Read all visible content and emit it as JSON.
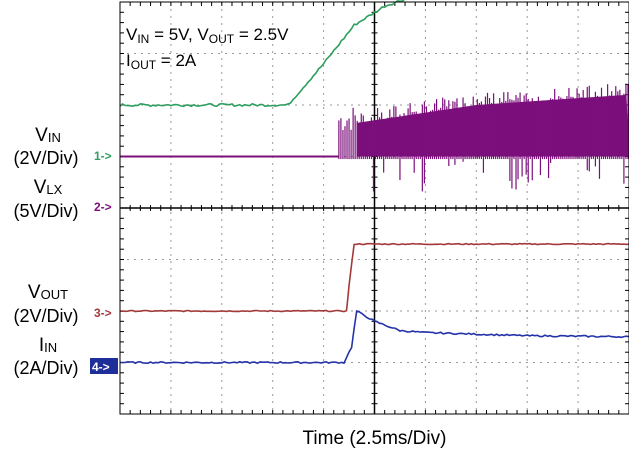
{
  "chart_data": {
    "type": "line",
    "title": "",
    "xlabel": "Time (2.5ms/Div)",
    "annotation": {
      "line1": {
        "v_in_symbol": "V",
        "v_in_sub": "IN",
        "v_in_value": " = 5V, ",
        "v_out_symbol": "V",
        "v_out_sub": "OUT",
        "v_out_value": " = 2.5V"
      },
      "line2": {
        "symbol": "I",
        "sub": "OUT",
        "value": " = 2A"
      }
    },
    "grid": true,
    "divisions": {
      "x": 10,
      "y": 8
    },
    "x_range_div": [
      0,
      10
    ],
    "y_range_div": [
      0,
      8
    ],
    "channels": [
      {
        "id": "1",
        "marker": "1->",
        "name_symbol": "V",
        "name_sub": "IN",
        "scale": "(2V/Div)",
        "color": "#2e9e5e",
        "x_div": [
          0,
          3.3,
          4.0,
          4.6,
          5.2,
          6.0,
          7.0,
          8.0,
          9.0,
          10.0
        ],
        "y_div": [
          6.0,
          6.0,
          6.8,
          7.55,
          7.92,
          8.2,
          8.38,
          8.48,
          8.52,
          8.55
        ]
      },
      {
        "id": "2",
        "marker": "2->",
        "name_symbol": "V",
        "name_sub": "LX",
        "scale": "(5V/Div)",
        "color": "#7b0f7b",
        "x_div": [
          0,
          4.3,
          10.0
        ],
        "baseline_div": 5.0,
        "burst_start_div": 4.3,
        "burst_top_div": [
          5.6,
          6.0,
          6.2
        ],
        "burst_top_x_div": [
          4.3,
          7.0,
          10.0
        ]
      },
      {
        "id": "3",
        "marker": "3->",
        "name_symbol": "V",
        "name_sub": "OUT",
        "scale": "(2V/Div)",
        "color": "#a33a3a",
        "x_div": [
          0,
          4.45,
          4.5,
          4.6,
          10.0
        ],
        "y_div": [
          2.0,
          2.0,
          2.5,
          3.3,
          3.3
        ]
      },
      {
        "id": "4",
        "marker": "4->",
        "name_symbol": "I",
        "name_sub": "IN",
        "scale": "(2A/Div)",
        "color": "#2433a8",
        "x_div": [
          0,
          4.4,
          4.55,
          4.65,
          5.0,
          5.5,
          6.0,
          7.0,
          8.0,
          10.0
        ],
        "y_div": [
          1.0,
          1.0,
          1.3,
          2.0,
          1.8,
          1.62,
          1.58,
          1.55,
          1.52,
          1.5
        ]
      }
    ]
  }
}
